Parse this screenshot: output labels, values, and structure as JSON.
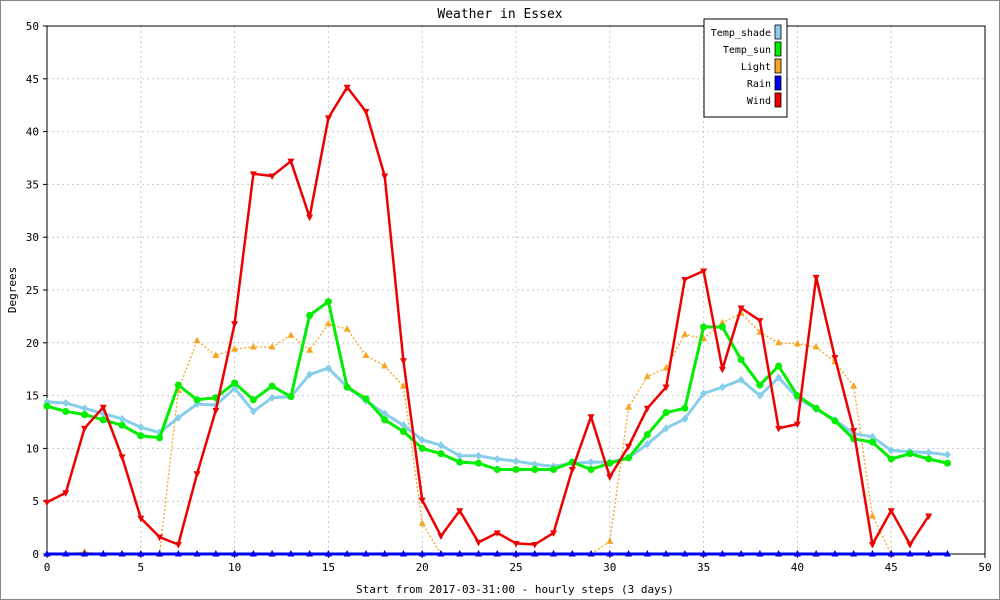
{
  "chart_data": {
    "type": "line",
    "title": "Weather in Essex",
    "xlabel": "Start from 2017-03-31:00 - hourly steps (3 days)",
    "ylabel": "Degrees",
    "xlim": [
      0,
      50
    ],
    "ylim": [
      0,
      50
    ],
    "xticks": [
      "0",
      "5",
      "10",
      "15",
      "20",
      "25",
      "30",
      "35",
      "40",
      "45",
      "50"
    ],
    "yticks": [
      "0",
      "5",
      "10",
      "15",
      "20",
      "25",
      "30",
      "35",
      "40",
      "45",
      "50"
    ],
    "grid": true,
    "legend_position": "top-right",
    "x": [
      0,
      1,
      2,
      3,
      4,
      5,
      6,
      7,
      8,
      9,
      10,
      11,
      12,
      13,
      14,
      15,
      16,
      17,
      18,
      19,
      20,
      21,
      22,
      23,
      24,
      25,
      26,
      27,
      28,
      29,
      30,
      31,
      32,
      33,
      34,
      35,
      36,
      37,
      38,
      39,
      40,
      41,
      42,
      43,
      44,
      45,
      46,
      47,
      48
    ],
    "series": [
      {
        "name": "Temp_shade",
        "color": "#87ceeb",
        "marker": "diamond",
        "values": [
          14.4,
          14.3,
          13.8,
          13.3,
          12.8,
          12.0,
          11.5,
          12.9,
          14.2,
          14.1,
          15.7,
          13.5,
          14.8,
          14.9,
          17.0,
          17.6,
          15.8,
          14.5,
          13.3,
          12.2,
          10.8,
          10.3,
          9.3,
          9.3,
          9.0,
          8.8,
          8.5,
          8.3,
          8.6,
          8.7,
          8.7,
          9.1,
          10.4,
          11.9,
          12.8,
          15.2,
          15.8,
          16.5,
          15.0,
          16.7,
          14.8,
          13.7,
          12.7,
          11.4,
          11.1,
          9.8,
          9.7,
          9.6,
          9.4
        ]
      },
      {
        "name": "Temp_sun",
        "color": "#00ee00",
        "marker": "circle",
        "values": [
          14.0,
          13.5,
          13.2,
          12.7,
          12.2,
          11.2,
          11.0,
          16.0,
          14.6,
          14.8,
          16.2,
          14.6,
          15.9,
          14.9,
          22.6,
          23.9,
          15.8,
          14.7,
          12.7,
          11.6,
          10.0,
          9.5,
          8.7,
          8.6,
          8.0,
          8.0,
          8.0,
          8.0,
          8.7,
          8.0,
          8.6,
          9.1,
          11.3,
          13.4,
          13.8,
          21.5,
          21.5,
          18.4,
          16.0,
          17.8,
          15.0,
          13.8,
          12.6,
          10.9,
          10.6,
          9.0,
          9.5,
          9.0,
          8.6
        ]
      },
      {
        "name": "Light",
        "color": "#f5a623",
        "marker": "triangle-up",
        "values": [
          0.0,
          0.0,
          0.2,
          0.0,
          0.0,
          0.0,
          0.0,
          15.5,
          20.2,
          18.8,
          19.4,
          19.6,
          19.6,
          20.7,
          19.3,
          21.8,
          21.3,
          18.8,
          17.8,
          15.9,
          2.9,
          0.0,
          0.0,
          0.0,
          0.0,
          0.0,
          0.0,
          0.0,
          0.0,
          0.0,
          1.2,
          13.9,
          16.8,
          17.6,
          20.8,
          20.4,
          21.9,
          22.8,
          21.0,
          20.0,
          19.9,
          19.6,
          18.2,
          15.9,
          3.6,
          0.0,
          null,
          null,
          null
        ]
      },
      {
        "name": "Rain",
        "color": "#0000ee",
        "marker": "triangle-up",
        "values": [
          0,
          0,
          0,
          0,
          0,
          0,
          0,
          0,
          0,
          0,
          0,
          0,
          0,
          0,
          0,
          0,
          0,
          0,
          0,
          0,
          0,
          0,
          0,
          0,
          0,
          0,
          0,
          0,
          0,
          0,
          0,
          0,
          0,
          0,
          0,
          0,
          0,
          0,
          0,
          0,
          0,
          0,
          0,
          0,
          0,
          0,
          0,
          0,
          0
        ]
      },
      {
        "name": "Wind",
        "color": "#ee0000",
        "marker": "triangle-down",
        "values": [
          4.9,
          5.8,
          11.9,
          13.9,
          9.2,
          3.4,
          1.6,
          0.9,
          7.6,
          13.6,
          21.8,
          36.0,
          35.8,
          37.2,
          31.9,
          41.3,
          44.2,
          41.9,
          35.8,
          18.3,
          5.1,
          1.7,
          4.1,
          1.1,
          2.0,
          1.0,
          0.9,
          2.0,
          8.0,
          13.0,
          7.3,
          10.2,
          13.8,
          15.8,
          26.0,
          26.8,
          17.5,
          23.3,
          22.1,
          11.9,
          12.3,
          26.2,
          18.6,
          11.7,
          0.9,
          4.1,
          0.9,
          3.6,
          null
        ]
      }
    ]
  }
}
